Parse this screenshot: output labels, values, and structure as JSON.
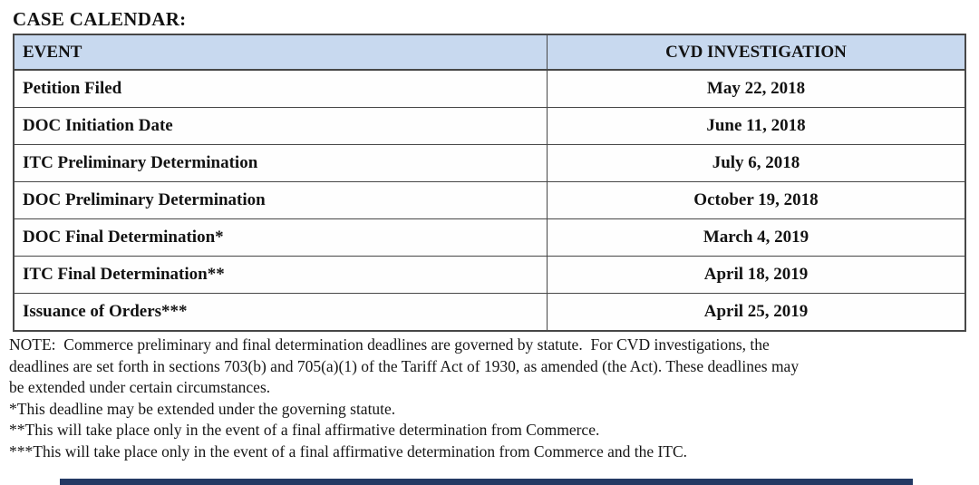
{
  "page": {
    "title": "CASE CALENDAR:"
  },
  "table": {
    "headers": {
      "event": "EVENT",
      "investigation": "CVD INVESTIGATION"
    },
    "rows": [
      {
        "event": "Petition Filed",
        "date": "May 22, 2018"
      },
      {
        "event": "DOC Initiation Date",
        "date": "June 11, 2018"
      },
      {
        "event": "ITC Preliminary Determination",
        "date": "July 6, 2018"
      },
      {
        "event": "DOC Preliminary Determination",
        "date": "October 19, 2018"
      },
      {
        "event": "DOC Final Determination*",
        "date": "March 4, 2019"
      },
      {
        "event": "ITC Final Determination**",
        "date": "April 18, 2019"
      },
      {
        "event": "Issuance of Orders***",
        "date": "April 25, 2019"
      }
    ],
    "header_bg_color": "#c8d9ef",
    "border_color": "#474747"
  },
  "notes": {
    "lines": [
      "NOTE:  Commerce preliminary and final determination deadlines are governed by statute.  For CVD investigations, the",
      "deadlines are set forth in sections 703(b) and 705(a)(1) of the Tariff Act of 1930, as amended (the Act). These deadlines may",
      "be extended under certain circumstances.",
      "*This deadline may be extended under the governing statute.",
      "**This will take place only in the event of a final affirmative determination from Commerce.",
      "***This will take place only in the event of a final affirmative determination from Commerce and the ITC."
    ]
  }
}
